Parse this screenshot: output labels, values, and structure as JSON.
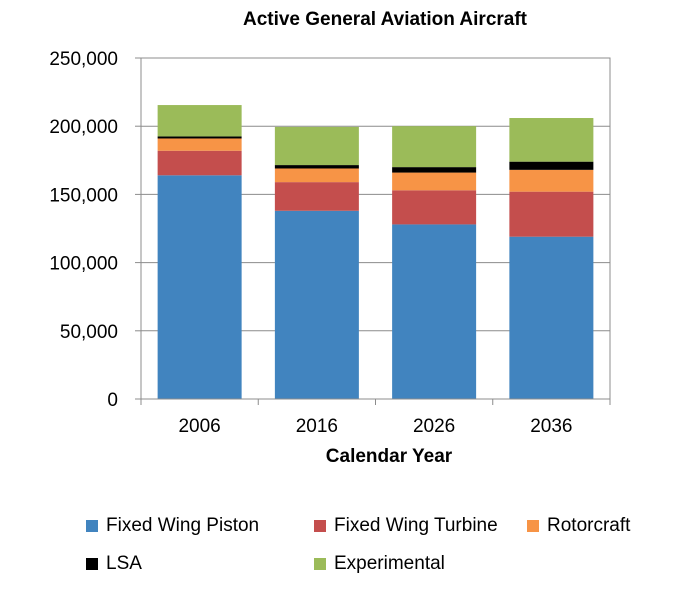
{
  "chart_data": {
    "type": "bar",
    "stacked": true,
    "title": "Active General Aviation Aircraft",
    "xlabel": "Calendar Year",
    "ylabel": "",
    "categories": [
      "2006",
      "2016",
      "2026",
      "2036"
    ],
    "ylim": [
      0,
      250000
    ],
    "yticks": [
      "0",
      "50,000",
      "100,000",
      "150,000",
      "200,000",
      "250,000"
    ],
    "grid": true,
    "legend_position": "bottom",
    "series": [
      {
        "name": "Fixed Wing Piston",
        "color": "#4184bf",
        "values": [
          164000,
          138000,
          128000,
          119000
        ]
      },
      {
        "name": "Fixed Wing Turbine",
        "color": "#c44e4d",
        "values": [
          18000,
          21000,
          25000,
          33000
        ]
      },
      {
        "name": "Rotorcraft",
        "color": "#f79446",
        "values": [
          9000,
          10000,
          13000,
          16000
        ]
      },
      {
        "name": "LSA",
        "color": "#000000",
        "values": [
          1500,
          2500,
          4000,
          6000
        ]
      },
      {
        "name": "Experimental",
        "color": "#9bbb59",
        "values": [
          23000,
          28000,
          30000,
          32000
        ]
      }
    ]
  }
}
